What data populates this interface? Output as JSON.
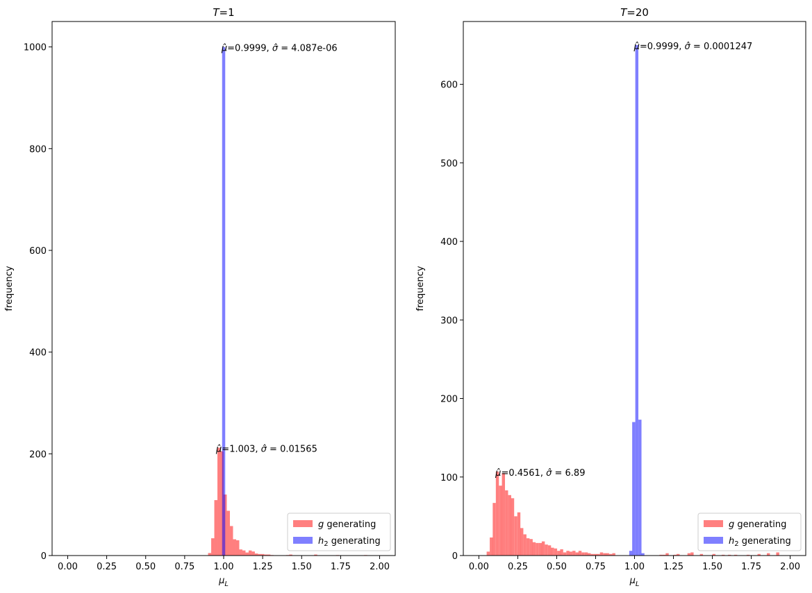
{
  "chart_data": [
    {
      "type": "histogram",
      "title": "T=1",
      "xlabel": "μL",
      "ylabel": "frequency",
      "xlim": [
        -0.1,
        2.1
      ],
      "ylim": [
        0,
        1050
      ],
      "x_ticks": [
        "0.00",
        "0.25",
        "0.50",
        "0.75",
        "1.00",
        "1.25",
        "1.50",
        "1.75",
        "2.00"
      ],
      "y_ticks": [
        "0",
        "200",
        "400",
        "600",
        "800",
        "1000"
      ],
      "grid": false,
      "legend_position": "lower-right",
      "series": [
        {
          "name": "g generating",
          "color": "#ff0000",
          "alpha": 0.5,
          "bin_width": 0.02,
          "bins": [
            [
              0.9,
              5
            ],
            [
              0.92,
              34
            ],
            [
              0.94,
              109
            ],
            [
              0.96,
              212
            ],
            [
              0.98,
              205
            ],
            [
              1.0,
              120
            ],
            [
              1.02,
              88
            ],
            [
              1.04,
              58
            ],
            [
              1.06,
              32
            ],
            [
              1.08,
              30
            ],
            [
              1.1,
              12
            ],
            [
              1.12,
              10
            ],
            [
              1.14,
              6
            ],
            [
              1.16,
              10
            ],
            [
              1.18,
              8
            ],
            [
              1.2,
              4
            ],
            [
              1.22,
              3
            ],
            [
              1.24,
              3
            ],
            [
              1.26,
              2
            ],
            [
              1.28,
              2
            ],
            [
              1.3,
              1
            ],
            [
              1.4,
              1
            ],
            [
              1.42,
              2
            ],
            [
              1.58,
              2
            ],
            [
              1.72,
              1
            ],
            [
              1.9,
              1
            ]
          ]
        },
        {
          "name": "h2 generating",
          "color": "#0000ff",
          "alpha": 0.5,
          "bin_width": 0.02,
          "bins": [
            [
              0.99,
              1000
            ]
          ]
        }
      ],
      "annotations": [
        {
          "mu": "0.9999",
          "sigma": "4.087e-06",
          "at": [
            0.995,
            1000
          ]
        },
        {
          "mu": "1.003",
          "sigma": "0.01565",
          "at": [
            0.96,
            212
          ]
        }
      ]
    },
    {
      "type": "histogram",
      "title": "T=20",
      "xlabel": "μL",
      "ylabel": "frequency",
      "xlim": [
        -0.1,
        2.1
      ],
      "ylim": [
        0,
        680
      ],
      "x_ticks": [
        "0.00",
        "0.25",
        "0.50",
        "0.75",
        "1.00",
        "1.25",
        "1.50",
        "1.75",
        "2.00"
      ],
      "y_ticks": [
        "0",
        "100",
        "200",
        "300",
        "400",
        "500",
        "600"
      ],
      "grid": false,
      "legend_position": "lower-right",
      "series": [
        {
          "name": "g generating",
          "color": "#ff0000",
          "alpha": 0.5,
          "bin_width": 0.0197,
          "bins": [
            [
              0.05,
              5
            ],
            [
              0.07,
              23
            ],
            [
              0.089,
              67
            ],
            [
              0.109,
              107
            ],
            [
              0.129,
              89
            ],
            [
              0.148,
              105
            ],
            [
              0.168,
              83
            ],
            [
              0.188,
              77
            ],
            [
              0.207,
              73
            ],
            [
              0.227,
              50
            ],
            [
              0.247,
              55
            ],
            [
              0.266,
              35
            ],
            [
              0.286,
              27
            ],
            [
              0.306,
              22
            ],
            [
              0.326,
              21
            ],
            [
              0.345,
              17
            ],
            [
              0.365,
              16
            ],
            [
              0.385,
              16
            ],
            [
              0.404,
              18
            ],
            [
              0.424,
              14
            ],
            [
              0.444,
              13
            ],
            [
              0.463,
              10
            ],
            [
              0.483,
              9
            ],
            [
              0.503,
              6
            ],
            [
              0.522,
              8
            ],
            [
              0.542,
              4
            ],
            [
              0.562,
              6
            ],
            [
              0.581,
              5
            ],
            [
              0.601,
              6
            ],
            [
              0.621,
              4
            ],
            [
              0.64,
              6
            ],
            [
              0.66,
              4
            ],
            [
              0.68,
              4
            ],
            [
              0.699,
              3
            ],
            [
              0.719,
              2
            ],
            [
              0.739,
              2
            ],
            [
              0.758,
              2
            ],
            [
              0.778,
              4
            ],
            [
              0.798,
              3
            ],
            [
              0.817,
              3
            ],
            [
              0.837,
              2
            ],
            [
              0.857,
              3
            ],
            [
              1.16,
              1
            ],
            [
              1.18,
              1
            ],
            [
              1.2,
              3
            ],
            [
              1.25,
              1
            ],
            [
              1.27,
              2
            ],
            [
              1.34,
              3
            ],
            [
              1.36,
              4
            ],
            [
              1.42,
              2
            ],
            [
              1.5,
              2
            ],
            [
              1.56,
              1
            ],
            [
              1.6,
              1
            ],
            [
              1.64,
              1
            ],
            [
              1.72,
              1
            ],
            [
              1.79,
              2
            ],
            [
              1.85,
              3
            ],
            [
              1.91,
              4
            ]
          ]
        },
        {
          "name": "h2 generating",
          "color": "#0000ff",
          "alpha": 0.5,
          "bin_width": 0.0197,
          "bins": [
            [
              0.966,
              6
            ],
            [
              0.985,
              170
            ],
            [
              1.005,
              650
            ],
            [
              1.025,
              173
            ],
            [
              1.044,
              3
            ]
          ]
        }
      ],
      "annotations": [
        {
          "mu": "0.9999",
          "sigma": "0.0001247",
          "at": [
            1.005,
            650
          ]
        },
        {
          "mu": "0.4561",
          "sigma": "6.89",
          "at": [
            0.115,
            107
          ]
        }
      ]
    }
  ]
}
